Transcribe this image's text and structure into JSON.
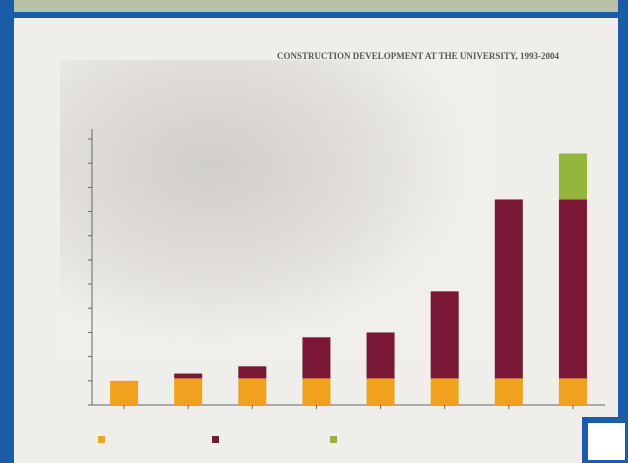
{
  "chart_data": {
    "type": "stacked-bar",
    "title": "CONSTRUCTION DEVELOPMENT AT THE UNIVERSITY, 1993-2004",
    "categories": [
      null,
      null,
      null,
      null,
      null,
      null,
      null,
      null
    ],
    "series": [
      {
        "color": "#f0a21e",
        "values": [
          1.0,
          1.1,
          1.1,
          1.1,
          1.1,
          1.1,
          1.1,
          1.1
        ]
      },
      {
        "color": "#7b1736",
        "values": [
          0,
          0.2,
          0.5,
          1.7,
          1.9,
          3.6,
          7.4,
          7.4
        ]
      },
      {
        "color": "#93b53c",
        "values": [
          0,
          0,
          0,
          0,
          0,
          0,
          0,
          1.9
        ]
      }
    ],
    "ylim": [
      0,
      11
    ],
    "yticks": [
      0,
      1,
      2,
      3,
      4,
      5,
      6,
      7,
      8,
      9,
      10,
      11
    ]
  }
}
